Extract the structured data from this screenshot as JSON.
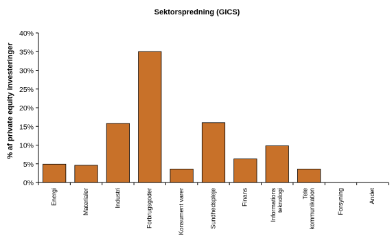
{
  "chart_data": {
    "type": "bar",
    "title": "Sektorspredning (GICS)",
    "xlabel": "",
    "ylabel": "% af private equity investeringer",
    "ylim": [
      0,
      40
    ],
    "ytick_values": [
      0,
      5,
      10,
      15,
      20,
      25,
      30,
      35,
      40
    ],
    "ytick_labels": [
      "0%",
      "5%",
      "10%",
      "15%",
      "20%",
      "25%",
      "30%",
      "35%",
      "40%"
    ],
    "categories": [
      [
        "Energi"
      ],
      [
        "Materialer"
      ],
      [
        "Industri"
      ],
      [
        "Forbrugsgoder"
      ],
      [
        "Konsument varer"
      ],
      [
        "Sundhedspleje"
      ],
      [
        "Finans"
      ],
      [
        "Informations",
        "teknologi"
      ],
      [
        "Tele",
        "kommunikation"
      ],
      [
        "Forsyning"
      ],
      [
        "Andet"
      ]
    ],
    "values": [
      4.9,
      4.6,
      15.8,
      35.0,
      3.6,
      16.0,
      6.3,
      9.8,
      3.6,
      0,
      0
    ],
    "grid": false,
    "legend": "none",
    "colors": {
      "bar_fill": "#C87129",
      "bar_stroke": "#000000",
      "axis": "#000000",
      "background": "#FFFFFF"
    }
  }
}
